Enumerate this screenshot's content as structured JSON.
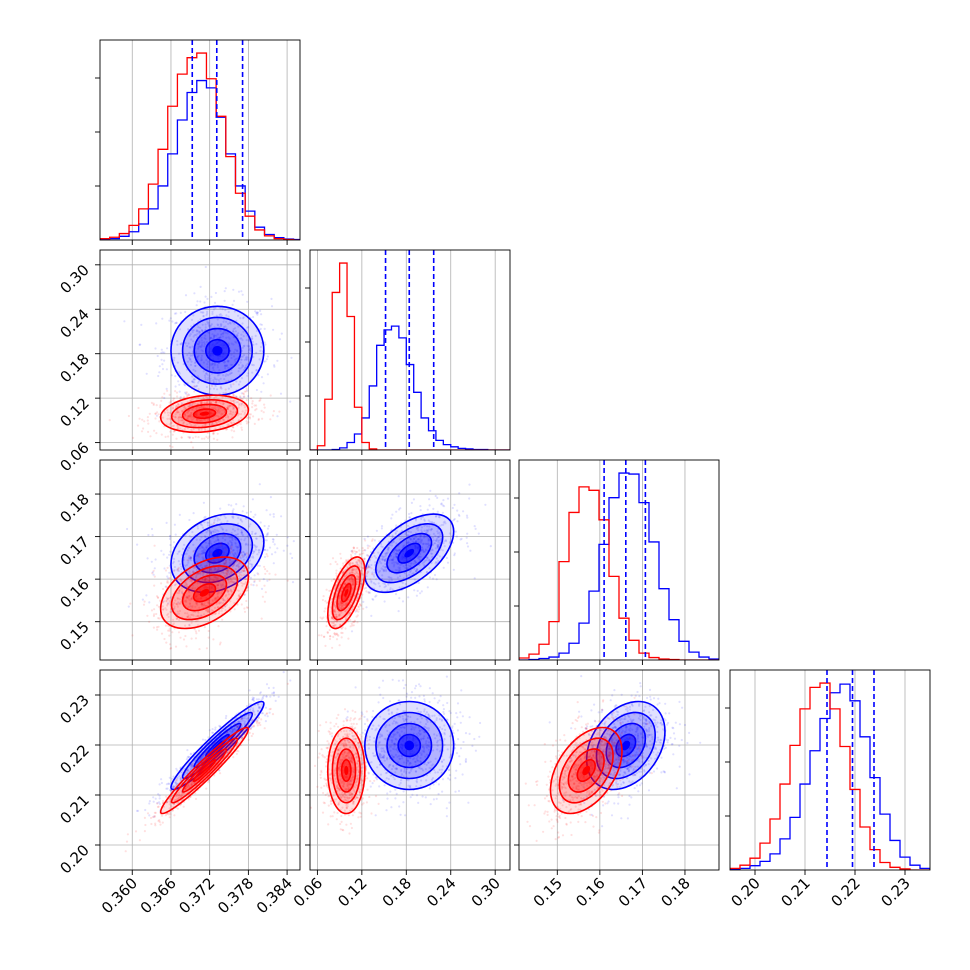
{
  "chart_data": {
    "type": "corner",
    "title": "",
    "grid": true,
    "legend": "none",
    "colors": {
      "blue": "#0000ff",
      "red": "#ff0000"
    },
    "parameters": [
      {
        "index": 0,
        "range": [
          0.355,
          0.386
        ],
        "ticks": [
          0.36,
          0.366,
          0.372,
          0.378,
          0.384
        ],
        "tick_labels": [
          "0.360",
          "0.366",
          "0.372",
          "0.378",
          "0.384"
        ],
        "quantiles_blue": [
          0.3693,
          0.3731,
          0.3771
        ]
      },
      {
        "index": 1,
        "range": [
          0.05,
          0.32
        ],
        "ticks": [
          0.06,
          0.12,
          0.18,
          0.24,
          0.3
        ],
        "tick_labels": [
          "0.06",
          "0.12",
          "0.18",
          "0.24",
          "0.30"
        ],
        "quantiles_blue": [
          0.152,
          0.184,
          0.217
        ]
      },
      {
        "index": 2,
        "range": [
          0.141,
          0.188
        ],
        "ticks": [
          0.15,
          0.16,
          0.17,
          0.18
        ],
        "tick_labels": [
          "0.15",
          "0.16",
          "0.17",
          "0.18"
        ],
        "quantiles_blue": [
          0.161,
          0.1661,
          0.1707
        ]
      },
      {
        "index": 3,
        "range": [
          0.195,
          0.235
        ],
        "ticks": [
          0.2,
          0.21,
          0.22,
          0.23
        ],
        "tick_labels": [
          "0.20",
          "0.21",
          "0.22",
          "0.23"
        ],
        "quantiles_blue": [
          0.2144,
          0.2195,
          0.2238
        ]
      }
    ],
    "series": [
      {
        "color": "#0000ff",
        "mean": [
          0.3732,
          0.184,
          0.1661,
          0.2199
        ],
        "std": [
          0.0036,
          0.03,
          0.0046,
          0.0044
        ],
        "corr": [
          [
            1,
            0,
            0.28,
            0.95
          ],
          [
            0,
            1,
            0.55,
            0
          ],
          [
            0.28,
            0.55,
            1,
            0.32
          ],
          [
            0.95,
            0,
            0.32,
            1
          ]
        ],
        "histograms": [
          {
            "x0": 0.355,
            "bin": 0.0015,
            "counts": [
              2,
              3,
              8,
              18,
              35,
              68,
              118,
              188,
              262,
              322,
              348,
              332,
              268,
              188,
              118,
              63,
              28,
              12,
              5,
              2,
              1
            ]
          },
          {
            "x0": 0.05,
            "bin": 0.01,
            "counts": [
              0,
              0,
              0,
              1,
              4,
              14,
              30,
              60,
              120,
              196,
              225,
              232,
              210,
              160,
              108,
              60,
              36,
              18,
              10,
              6,
              3,
              2,
              1,
              1,
              0,
              0,
              0
            ]
          },
          {
            "x0": 0.141,
            "bin": 0.00235,
            "counts": [
              0,
              1,
              3,
              6,
              14,
              34,
              75,
              140,
              235,
              330,
              380,
              378,
              320,
              240,
              145,
              82,
              38,
              16,
              6,
              2
            ]
          },
          {
            "x0": 0.195,
            "bin": 0.002,
            "counts": [
              1,
              3,
              8,
              16,
              30,
              58,
              98,
              160,
              222,
              282,
              330,
              346,
              315,
              248,
              172,
              104,
              55,
              24,
              9,
              3
            ]
          }
        ]
      },
      {
        "color": "#ff0000",
        "mean": [
          0.3712,
          0.099,
          0.1568,
          0.2149
        ],
        "std": [
          0.0034,
          0.0125,
          0.0042,
          0.0043
        ],
        "corr": [
          [
            1,
            0.2,
            0.45,
            0.96
          ],
          [
            0.2,
            1,
            0.6,
            0
          ],
          [
            0.45,
            0.6,
            1,
            0.45
          ],
          [
            0.96,
            0,
            0.45,
            1
          ]
        ],
        "histograms": [
          {
            "x0": 0.355,
            "bin": 0.0015,
            "counts": [
              3,
              6,
              14,
              32,
              68,
              122,
              198,
              292,
              362,
              398,
              408,
              352,
              270,
              182,
              102,
              52,
              22,
              9,
              3,
              1,
              0
            ]
          },
          {
            "x0": 0.05,
            "bin": 0.01,
            "counts": [
              0,
              8,
              95,
              295,
              350,
              250,
              80,
              14,
              2,
              0,
              0,
              0,
              0,
              0,
              0,
              0,
              0,
              0,
              0,
              0,
              0,
              0,
              0,
              0,
              0,
              0,
              0
            ]
          },
          {
            "x0": 0.141,
            "bin": 0.00235,
            "counts": [
              4,
              12,
              32,
              78,
              200,
              300,
              352,
              345,
              285,
              170,
              85,
              40,
              14,
              5,
              2,
              1,
              0,
              0,
              0,
              0
            ]
          },
          {
            "x0": 0.195,
            "bin": 0.002,
            "counts": [
              3,
              9,
              22,
              50,
              95,
              160,
              232,
              300,
              340,
              348,
              300,
              230,
              150,
              80,
              38,
              14,
              5,
              2,
              0,
              0
            ]
          }
        ]
      }
    ]
  }
}
